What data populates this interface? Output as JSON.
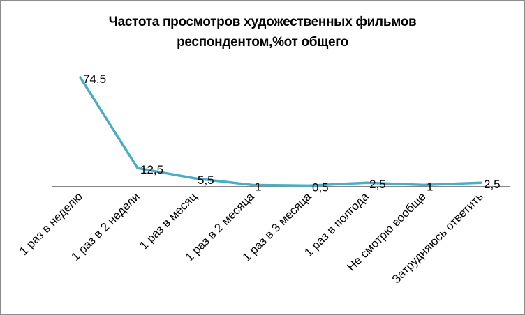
{
  "chart_data": {
    "type": "line",
    "title_lines": [
      "Частота просмотров художественных фильмов",
      "респондентом,%от общего"
    ],
    "categories": [
      "1 раз в неделю",
      "1 раз в 2 недели",
      "1 раз в месяц",
      "1 раз в 2 месяца",
      "1 раз в 3 месяца",
      "1 раз в полгода",
      "Не смотрю вообще",
      "Затрудняюсь ответить"
    ],
    "series": [
      {
        "values": [
          74.5,
          12.5,
          5.5,
          1,
          0.5,
          2.5,
          1,
          2.5
        ]
      }
    ],
    "data_labels": [
      "74,5",
      "12,5",
      "5,5",
      "1",
      "0,5",
      "2,5",
      "1",
      "2,5"
    ],
    "ylim": [
      0,
      80
    ],
    "grid": false,
    "legend": "none",
    "line_color": "#4bacc6",
    "axis_color": "#868686"
  }
}
